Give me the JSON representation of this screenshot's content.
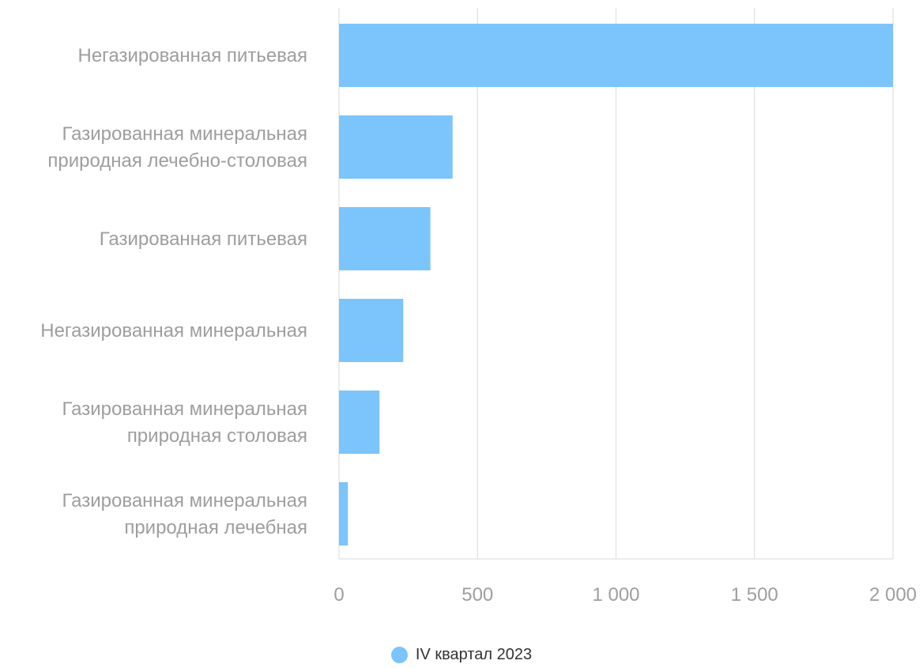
{
  "chart_data": {
    "type": "bar",
    "orientation": "horizontal",
    "categories": [
      [
        "Негазированная питьевая"
      ],
      [
        "Газированная минеральная",
        "природная лечебно-столовая"
      ],
      [
        "Газированная питьевая"
      ],
      [
        "Негазированная минеральная"
      ],
      [
        "Газированная минеральная",
        "природная столовая"
      ],
      [
        "Газированная минеральная",
        "природная лечебная"
      ]
    ],
    "series": [
      {
        "name": "IV квартал 2023",
        "values": [
          2000,
          410,
          330,
          232,
          146,
          32
        ]
      }
    ],
    "xlim": [
      0,
      2000
    ],
    "xticks": [
      0,
      500,
      1000,
      1500,
      2000
    ],
    "xtick_labels": [
      "0",
      "500",
      "1 000",
      "1 500",
      "2 000"
    ],
    "grid": true,
    "legend_position": "bottom",
    "colors": {
      "bar": "#7cc4fc",
      "grid": "#e6e6e6",
      "label": "#9e9e9e",
      "legend_text": "#333333"
    }
  }
}
